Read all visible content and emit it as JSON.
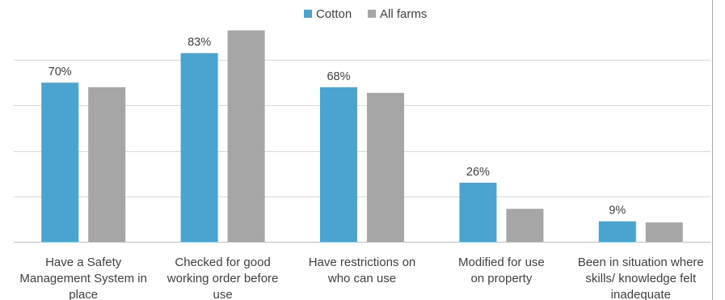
{
  "chart_data": {
    "type": "bar",
    "title": "",
    "xlabel": "",
    "ylabel": "",
    "ylim": [
      0,
      90
    ],
    "grid": true,
    "legend_position": "top-center",
    "categories": [
      [
        "Have a Safety",
        "Management System in",
        "place"
      ],
      [
        "Checked for good",
        "working order before",
        "use"
      ],
      [
        "Have restrictions on",
        "who can use"
      ],
      [
        "Modified for use",
        "on property"
      ],
      [
        "Been in situation where",
        "skills/ knowledge felt",
        "inadequate"
      ]
    ],
    "series": [
      {
        "name": "Cotton",
        "color": "#4ba3cf",
        "values": [
          70,
          83,
          68,
          26,
          9
        ],
        "data_labels": [
          "70%",
          "83%",
          "68%",
          "26%",
          "9%"
        ]
      },
      {
        "name": "All farms",
        "color": "#a6a6a6",
        "values": [
          68,
          93,
          65.5,
          14.5,
          8.5
        ],
        "data_labels": []
      }
    ]
  }
}
